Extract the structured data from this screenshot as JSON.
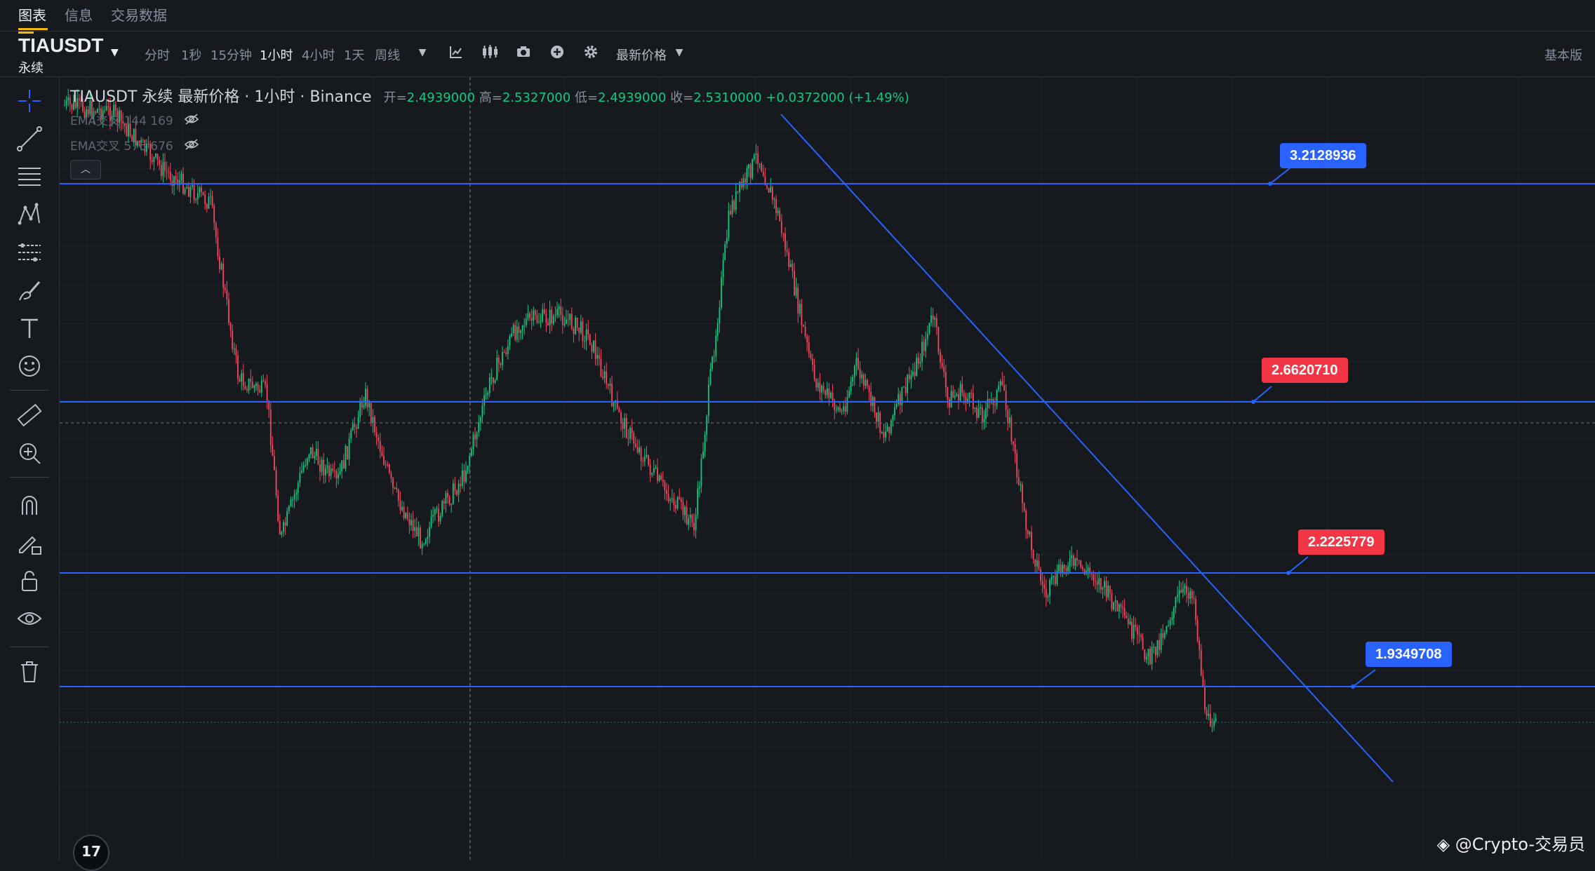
{
  "top_tabs": [
    {
      "label": "图表",
      "active": true
    },
    {
      "label": "信息",
      "active": false
    },
    {
      "label": "交易数据",
      "active": false
    }
  ],
  "symbol": {
    "name": "TIAUSDT",
    "type": "永续"
  },
  "timeframes": [
    {
      "label": "分时",
      "active": false
    },
    {
      "label": "1秒",
      "active": false
    },
    {
      "label": "15分钟",
      "active": false
    },
    {
      "label": "1小时",
      "active": true
    },
    {
      "label": "4小时",
      "active": false
    },
    {
      "label": "1天",
      "active": false
    },
    {
      "label": "周线",
      "active": false
    }
  ],
  "price_type_label": "最新价格",
  "basic_label": "基本版",
  "legend": {
    "title": "TIAUSDT 永续 最新价格 · 1小时 · Binance",
    "open_label": "开=",
    "open": "2.4939000",
    "high_label": "高=",
    "high": "2.5327000",
    "low_label": "低=",
    "low": "2.4939000",
    "close_label": "收=",
    "close": "2.5310000",
    "change": "+0.0372000 (+1.49%)"
  },
  "indicators": [
    {
      "label": "EMA交叉 144 169"
    },
    {
      "label": "EMA交叉 576 676"
    }
  ],
  "price_labels": [
    {
      "text": "3.2128936",
      "color": "blue"
    },
    {
      "text": "2.6620710",
      "color": "red"
    },
    {
      "text": "2.2225779",
      "color": "red"
    },
    {
      "text": "1.9349708",
      "color": "blue"
    }
  ],
  "watermark": "@Crypto-交易员",
  "colors": {
    "background": "#161a1e",
    "up": "#0ecb81",
    "down": "#f6465d",
    "level_line": "#2962ff",
    "accent": "#f0b90b"
  },
  "icons": [
    "crosshair-icon",
    "trendline-icon",
    "fib-icon",
    "pattern-icon",
    "measure-lines-icon",
    "brush-icon",
    "text-icon",
    "emoji-icon",
    "ruler-icon",
    "zoom-in-icon",
    "magnet-icon",
    "lock-draw-icon",
    "lock-icon",
    "eye-icon",
    "trash-icon"
  ]
}
